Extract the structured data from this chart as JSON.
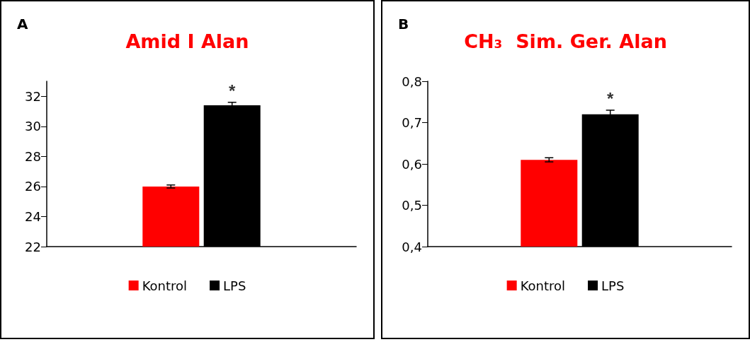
{
  "chart_data": [
    {
      "type": "bar",
      "title": "Amid I Alan",
      "categories": [
        null
      ],
      "series": [
        {
          "name": "Kontrol",
          "color": "#ff0000",
          "values": [
            26.0
          ],
          "errors": [
            0.1
          ]
        },
        {
          "name": "LPS",
          "color": "#000000",
          "values": [
            31.4
          ],
          "errors": [
            0.2
          ]
        }
      ],
      "ylim": [
        22,
        33
      ],
      "yticks": [
        22,
        24,
        26,
        28,
        30,
        32
      ],
      "legend": "bottom",
      "annotations": [
        "A",
        "*"
      ]
    },
    {
      "type": "bar",
      "title": "CH₃  Sim. Ger. Alan",
      "categories": [
        null
      ],
      "series": [
        {
          "name": "Kontrol",
          "color": "#ff0000",
          "values": [
            0.61
          ],
          "errors": [
            0.005
          ]
        },
        {
          "name": "LPS",
          "color": "#000000",
          "values": [
            0.72
          ],
          "errors": [
            0.01
          ]
        }
      ],
      "ylim": [
        0.4,
        0.8
      ],
      "yticks": [
        {
          "value": 0.4,
          "label": "0,4"
        },
        {
          "value": 0.5,
          "label": "0,5"
        },
        {
          "value": 0.6,
          "label": "0,6"
        },
        {
          "value": 0.7,
          "label": "0,7"
        },
        {
          "value": 0.8,
          "label": "0,8"
        }
      ],
      "legend": "bottom",
      "annotations": [
        "B",
        "*"
      ]
    }
  ]
}
